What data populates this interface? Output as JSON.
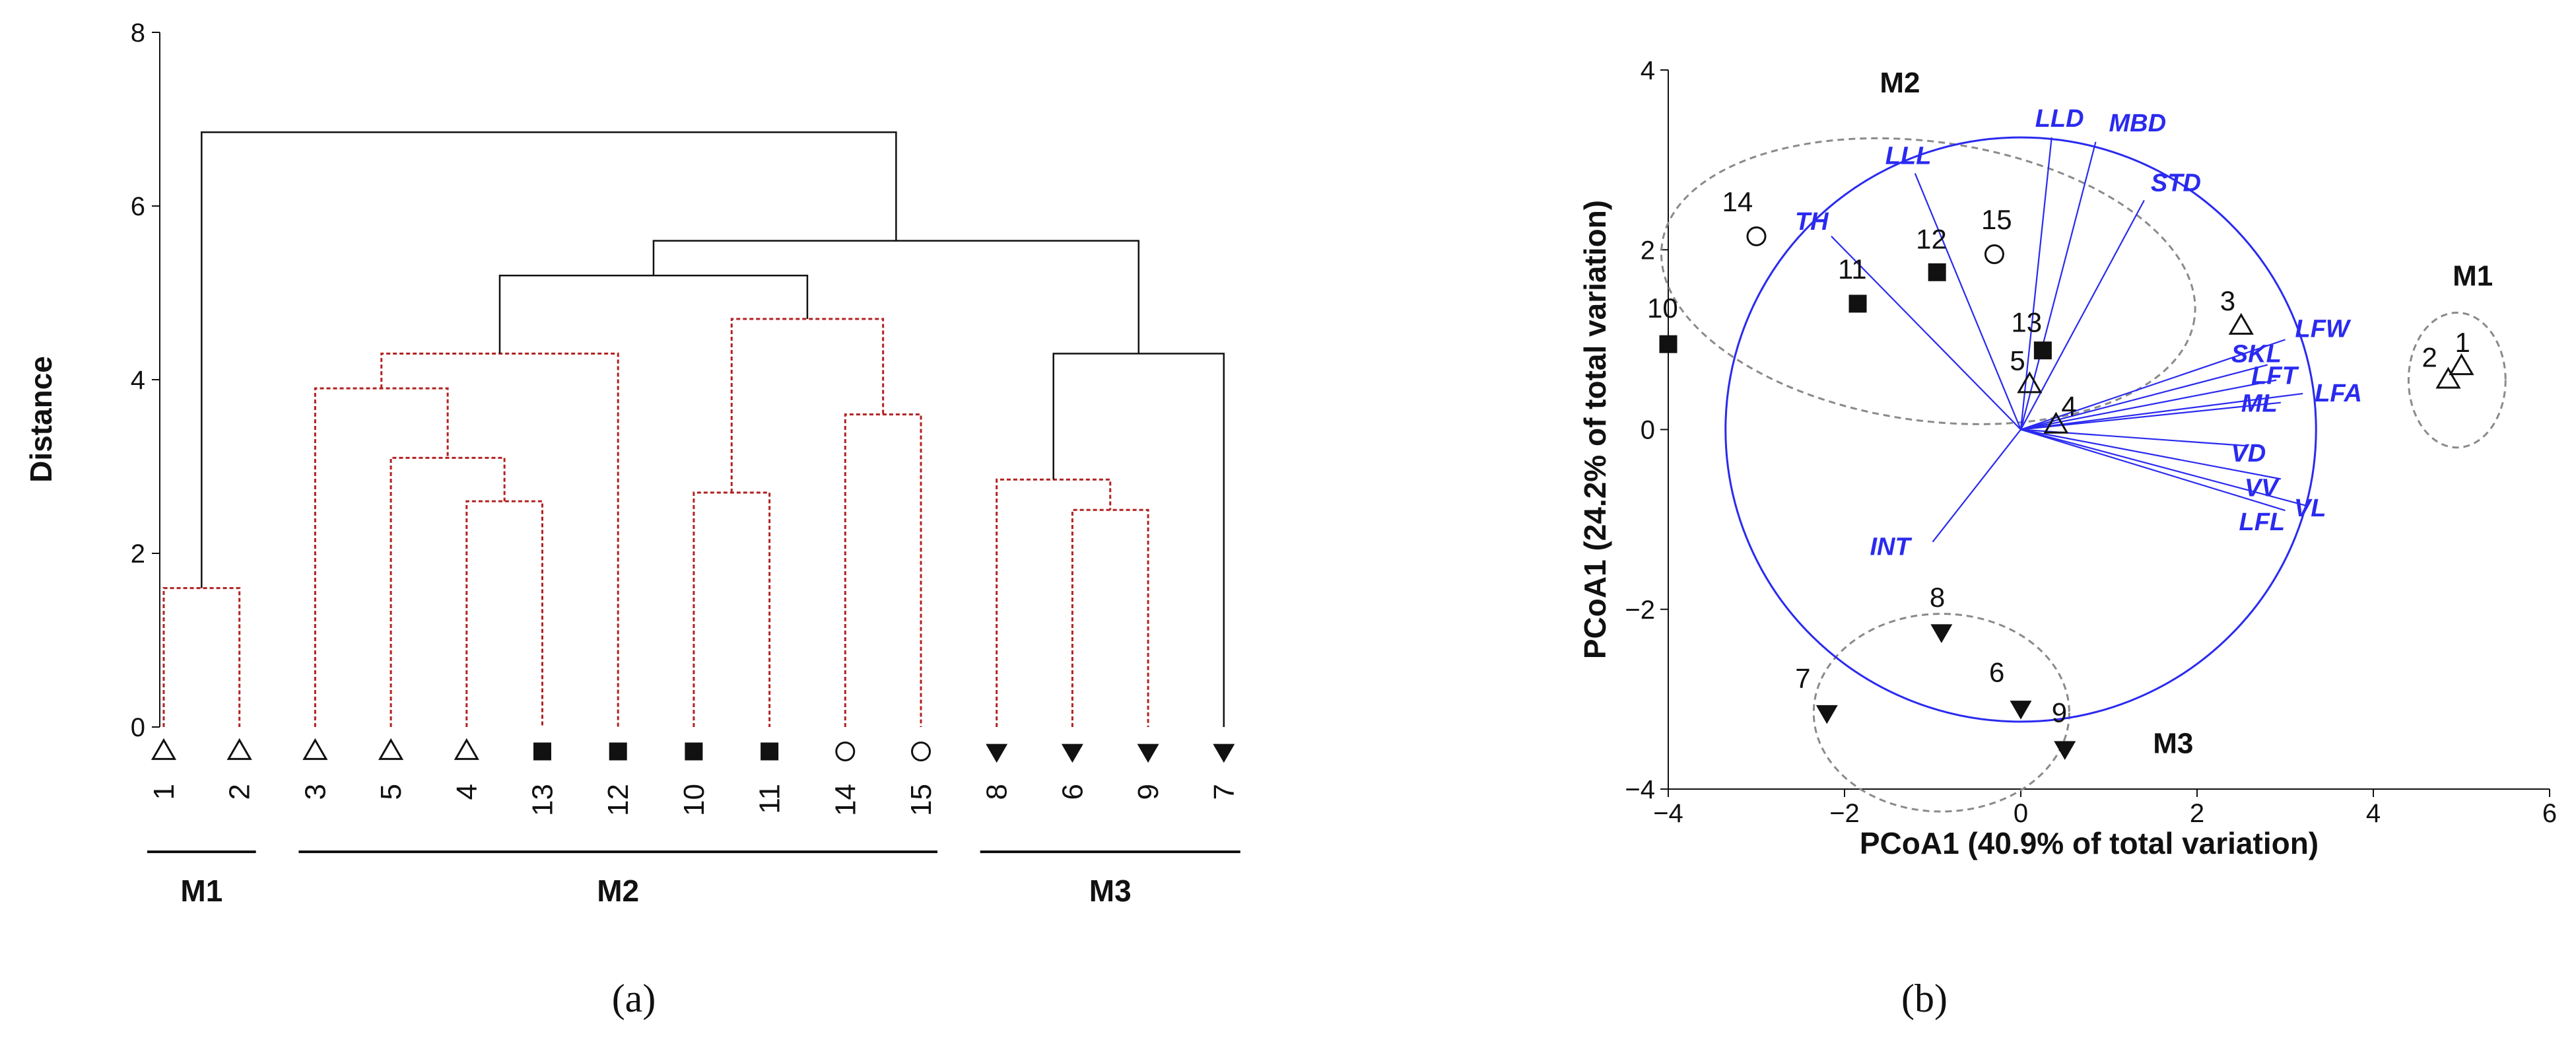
{
  "colors": {
    "black": "#111111",
    "red_dotted": "#b22222",
    "blue": "#2a2af0",
    "grey_dashed": "#8a8a8a"
  },
  "chart_data": [
    {
      "type": "dendrogram",
      "panel_label": "(a)",
      "title": "",
      "ylabel": "Distance",
      "ylim": [
        0,
        8
      ],
      "yticks": [
        0,
        2,
        4,
        6,
        8
      ],
      "leaves": [
        {
          "label": "1",
          "marker": "triangle-open"
        },
        {
          "label": "2",
          "marker": "triangle-open"
        },
        {
          "label": "3",
          "marker": "triangle-open"
        },
        {
          "label": "5",
          "marker": "triangle-open"
        },
        {
          "label": "4",
          "marker": "triangle-open"
        },
        {
          "label": "13",
          "marker": "square-filled"
        },
        {
          "label": "12",
          "marker": "square-filled"
        },
        {
          "label": "10",
          "marker": "square-filled"
        },
        {
          "label": "11",
          "marker": "square-filled"
        },
        {
          "label": "14",
          "marker": "circle-open"
        },
        {
          "label": "15",
          "marker": "circle-open"
        },
        {
          "label": "8",
          "marker": "triangle-down-filled"
        },
        {
          "label": "6",
          "marker": "triangle-down-filled"
        },
        {
          "label": "9",
          "marker": "triangle-down-filled"
        },
        {
          "label": "7",
          "marker": "triangle-down-filled"
        }
      ],
      "merges": [
        {
          "id": "a",
          "left": 0,
          "right": 1,
          "height": 1.6,
          "style": "red"
        },
        {
          "id": "b",
          "left": 4,
          "right": 5,
          "height": 2.6,
          "style": "red"
        },
        {
          "id": "c",
          "left": 3,
          "right": "b",
          "height": 3.1,
          "style": "red"
        },
        {
          "id": "d",
          "left": 2,
          "right": "c",
          "height": 3.9,
          "style": "red"
        },
        {
          "id": "e",
          "left": "d",
          "right": 6,
          "height": 4.3,
          "style": "red"
        },
        {
          "id": "f",
          "left": 7,
          "right": 8,
          "height": 2.7,
          "style": "red"
        },
        {
          "id": "g",
          "left": 9,
          "right": 10,
          "height": 3.6,
          "style": "red"
        },
        {
          "id": "h",
          "left": "f",
          "right": "g",
          "height": 4.7,
          "style": "red"
        },
        {
          "id": "i",
          "left": "e",
          "right": "h",
          "height": 5.2,
          "style": "black"
        },
        {
          "id": "j",
          "left": 12,
          "right": 13,
          "height": 2.5,
          "style": "red"
        },
        {
          "id": "k",
          "left": 11,
          "right": "j",
          "height": 2.85,
          "style": "red"
        },
        {
          "id": "l",
          "left": "k",
          "right": 14,
          "height": 4.3,
          "style": "black"
        },
        {
          "id": "m",
          "left": "i",
          "right": "l",
          "height": 5.6,
          "style": "black"
        },
        {
          "id": "n",
          "left": "a",
          "right": "m",
          "height": 6.85,
          "style": "black"
        }
      ],
      "groups": [
        {
          "label": "M1",
          "from": 0,
          "to": 1
        },
        {
          "label": "M2",
          "from": 2,
          "to": 10
        },
        {
          "label": "M3",
          "from": 11,
          "to": 14
        }
      ]
    },
    {
      "type": "scatter",
      "panel_label": "(b)",
      "xlabel": "PCoA1 (40.9% of total variation)",
      "ylabel": "PCoA1 (24.2% of total variation)",
      "xlim": [
        -4,
        6
      ],
      "ylim": [
        -4,
        4
      ],
      "xticks": [
        -4,
        -2,
        0,
        2,
        4,
        6
      ],
      "xtick_labels": [
        "−4",
        "−2",
        "0",
        "2",
        "4",
        "6"
      ],
      "yticks": [
        -4,
        -2,
        0,
        2,
        4
      ],
      "ytick_labels": [
        "−4",
        "−2",
        "0",
        "2",
        "4"
      ],
      "points": [
        {
          "label": "1",
          "x": 5.0,
          "y": 0.7,
          "marker": "triangle-open"
        },
        {
          "label": "2",
          "x": 4.85,
          "y": 0.55,
          "marker": "triangle-open"
        },
        {
          "label": "3",
          "x": 2.5,
          "y": 1.15,
          "marker": "triangle-open"
        },
        {
          "label": "4",
          "x": 0.4,
          "y": 0.05,
          "marker": "triangle-open"
        },
        {
          "label": "5",
          "x": 0.1,
          "y": 0.5,
          "marker": "triangle-open"
        },
        {
          "label": "6",
          "x": 0.0,
          "y": -3.1,
          "marker": "triangle-down-filled"
        },
        {
          "label": "7",
          "x": -2.2,
          "y": -3.15,
          "marker": "triangle-down-filled"
        },
        {
          "label": "8",
          "x": -0.9,
          "y": -2.25,
          "marker": "triangle-down-filled"
        },
        {
          "label": "9",
          "x": 0.5,
          "y": -3.55,
          "marker": "triangle-down-filled"
        },
        {
          "label": "10",
          "x": -4.0,
          "y": 0.95,
          "marker": "square-filled"
        },
        {
          "label": "11",
          "x": -1.85,
          "y": 1.4,
          "marker": "square-filled"
        },
        {
          "label": "12",
          "x": -0.95,
          "y": 1.75,
          "marker": "square-filled"
        },
        {
          "label": "13",
          "x": 0.25,
          "y": 0.88,
          "marker": "square-filled"
        },
        {
          "label": "14",
          "x": -3.0,
          "y": 2.15,
          "marker": "circle-open"
        },
        {
          "label": "15",
          "x": -0.3,
          "y": 1.95,
          "marker": "circle-open"
        }
      ],
      "vectors": [
        {
          "label": "LLD",
          "x": 0.35,
          "y": 3.25
        },
        {
          "label": "MBD",
          "x": 0.85,
          "y": 3.2
        },
        {
          "label": "LLL",
          "x": -1.2,
          "y": 2.85
        },
        {
          "label": "TH",
          "x": -2.15,
          "y": 2.15
        },
        {
          "label": "STD",
          "x": 1.4,
          "y": 2.55
        },
        {
          "label": "LFW",
          "x": 3.0,
          "y": 1.0
        },
        {
          "label": "SKL",
          "x": 2.8,
          "y": 0.72
        },
        {
          "label": "LFT",
          "x": 2.9,
          "y": 0.55
        },
        {
          "label": "LFA",
          "x": 3.2,
          "y": 0.4
        },
        {
          "label": "ML",
          "x": 2.95,
          "y": 0.3
        },
        {
          "label": "VD",
          "x": 2.55,
          "y": -0.18
        },
        {
          "label": "VV",
          "x": 2.95,
          "y": -0.55
        },
        {
          "label": "LFL",
          "x": 3.0,
          "y": -0.9
        },
        {
          "label": "VL",
          "x": 3.25,
          "y": -0.85
        },
        {
          "label": "INT",
          "x": -1.0,
          "y": -1.25
        }
      ],
      "cluster_labels": [
        {
          "label": "M1",
          "x": 4.9,
          "y": 1.6
        },
        {
          "label": "M2",
          "x": -1.6,
          "y": 3.75
        },
        {
          "label": "M3",
          "x": 1.5,
          "y": -3.6
        }
      ]
    }
  ]
}
